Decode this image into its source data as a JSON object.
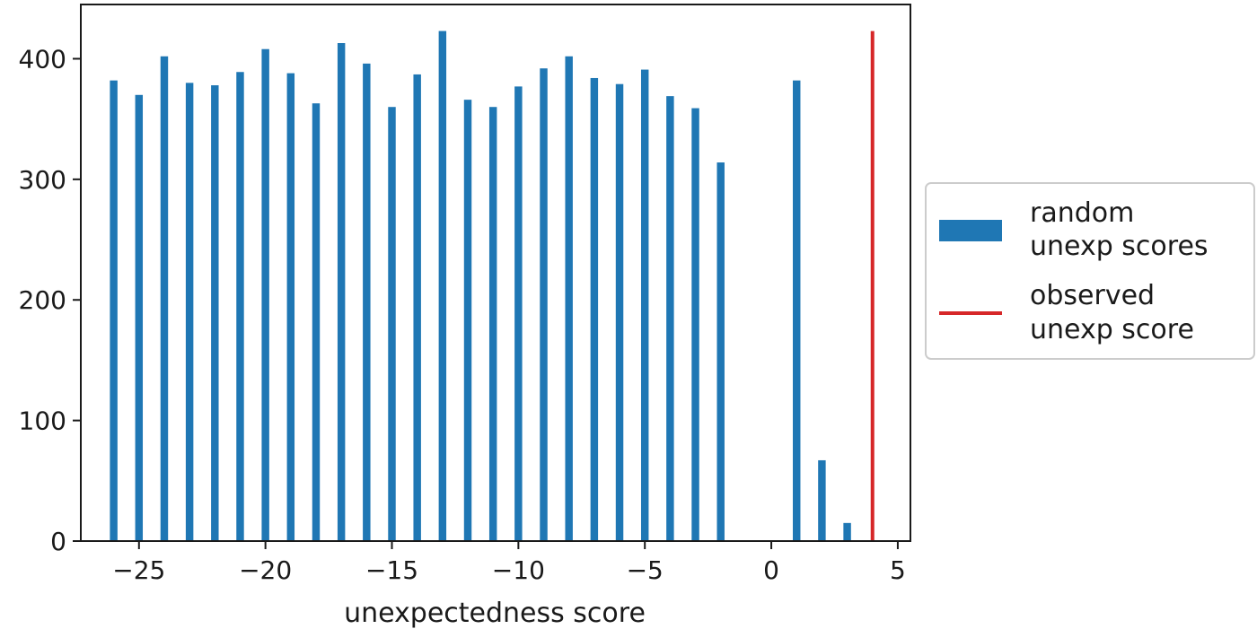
{
  "chart_data": {
    "type": "bar",
    "title": "",
    "xlabel": "unexpectedness score",
    "ylabel": "",
    "xlim": [
      -27.3,
      5.5
    ],
    "ylim": [
      0,
      445
    ],
    "grid": false,
    "legend_position": "outside-right",
    "x_ticks": [
      -25,
      -20,
      -15,
      -10,
      -5,
      0,
      5
    ],
    "x_tick_labels": [
      "−25",
      "−20",
      "−15",
      "−10",
      "−5",
      "0",
      "5"
    ],
    "y_ticks": [
      0,
      100,
      200,
      300,
      400
    ],
    "y_tick_labels": [
      "0",
      "100",
      "200",
      "300",
      "400"
    ],
    "series": [
      {
        "kind": "bar",
        "color": "#1f77b4",
        "legend_lines": [
          "random",
          "unexp scores"
        ],
        "bar_width": 0.3,
        "x": [
          -26,
          -25,
          -24,
          -23,
          -22,
          -21,
          -20,
          -19,
          -18,
          -17,
          -16,
          -15,
          -14,
          -13,
          -12,
          -11,
          -10,
          -9,
          -8,
          -7,
          -6,
          -5,
          -4,
          -3,
          -2,
          1,
          2,
          3
        ],
        "values": [
          382,
          370,
          402,
          380,
          378,
          389,
          408,
          388,
          363,
          413,
          396,
          360,
          387,
          423,
          366,
          360,
          377,
          392,
          402,
          384,
          379,
          391,
          369,
          359,
          314,
          382,
          67,
          15
        ]
      },
      {
        "kind": "vline",
        "color": "#d62728",
        "legend_lines": [
          "observed",
          "unexp score"
        ],
        "x": 4,
        "y_top": 423
      }
    ]
  }
}
